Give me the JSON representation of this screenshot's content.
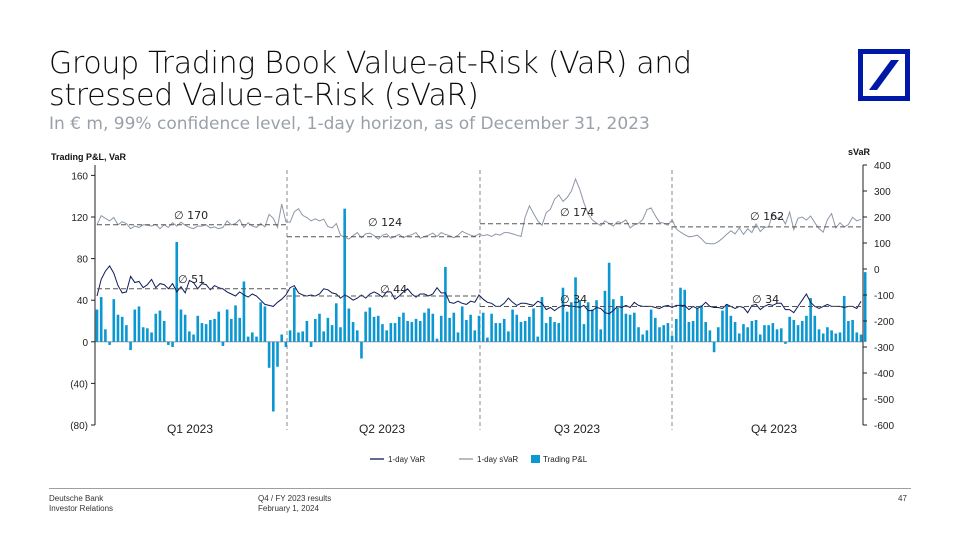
{
  "header": {
    "title": "Group Trading Book Value-at-Risk (VaR) and stressed Value-at-Risk (sVaR)",
    "subtitle": "In € m, 99% confidence level, 1-day horizon, as of December 31, 2023"
  },
  "logo": {
    "icon": "deutsche-bank-slash-logo",
    "color": "#0018a8"
  },
  "footer": {
    "left_line1": "Deutsche Bank",
    "left_line2": "Investor Relations",
    "mid_line1": "Q4 / FY 2023 results",
    "mid_line2": "February 1, 2024",
    "page": "47"
  },
  "colors": {
    "var": "#0f1a5c",
    "svar": "#8d97a6",
    "pnl": "#0a97d2",
    "avg_line": "#555555"
  },
  "chart_data": {
    "type": "line",
    "left_axis": {
      "label": "Trading P&L, VaR",
      "min": -80,
      "max": 170,
      "ticks": [
        160,
        120,
        80,
        40,
        0,
        -40,
        -80
      ],
      "tick_labels": [
        "160",
        "120",
        "80",
        "40",
        "0",
        "(40)",
        "(80)"
      ]
    },
    "right_axis": {
      "label": "sVaR",
      "min": -600,
      "max": 400,
      "ticks": [
        400,
        300,
        200,
        100,
        0,
        -100,
        -200,
        -300,
        -400,
        -500,
        -600
      ],
      "tick_labels": [
        "400",
        "300",
        "200",
        "100",
        "0",
        "-100",
        "-200",
        "-300",
        "-400",
        "-500",
        "-600"
      ]
    },
    "quarters": [
      "Q1 2023",
      "Q2 2023",
      "Q3 2023",
      "Q4 2023"
    ],
    "legend": [
      "1-day VaR",
      "1-day sVaR",
      "Trading P&L"
    ],
    "averages": {
      "var": [
        {
          "quarter": "Q1 2023",
          "label": "∅ 51",
          "value": 51
        },
        {
          "quarter": "Q2 2023",
          "label": "∅ 44",
          "value": 44
        },
        {
          "quarter": "Q3 2023",
          "label": "∅ 34",
          "value": 34
        },
        {
          "quarter": "Q4 2023",
          "label": "∅ 34",
          "value": 34
        }
      ],
      "svar": [
        {
          "quarter": "Q1 2023",
          "label": "∅ 170",
          "value": 170
        },
        {
          "quarter": "Q2 2023",
          "label": "∅ 124",
          "value": 124
        },
        {
          "quarter": "Q3 2023",
          "label": "∅ 174",
          "value": 174
        },
        {
          "quarter": "Q4 2023",
          "label": "∅ 162",
          "value": 162
        }
      ]
    },
    "series": [
      {
        "name": "1-day VaR",
        "axis": "left",
        "values": [
          44,
          60,
          68,
          73,
          66,
          54,
          47,
          48,
          63,
          57,
          58,
          52,
          55,
          60,
          52,
          56,
          55,
          51,
          56,
          48,
          53,
          47,
          59,
          57,
          51,
          56,
          55,
          50,
          54,
          52,
          51,
          48,
          46,
          44,
          48,
          45,
          43,
          46,
          44,
          40,
          36,
          35,
          34,
          38,
          41,
          45,
          52,
          54,
          47,
          45,
          44,
          45,
          44,
          46,
          51,
          50,
          47,
          46,
          42,
          45,
          43,
          40,
          42,
          45,
          42,
          46,
          48,
          46,
          43,
          48,
          48,
          41,
          44,
          48,
          51,
          46,
          43,
          46,
          46,
          44,
          46,
          52,
          47,
          47,
          38,
          37,
          39,
          37,
          36,
          39,
          38,
          45,
          41,
          38,
          37,
          34,
          34,
          37,
          42,
          38,
          35,
          37,
          37,
          36,
          35,
          39,
          37,
          31,
          33,
          30,
          33,
          35,
          35,
          34,
          34,
          33,
          35,
          30,
          30,
          33,
          32,
          28,
          27,
          30,
          34,
          33,
          35,
          33,
          38,
          35,
          34,
          34,
          34,
          33,
          32,
          34,
          35,
          33,
          35,
          35,
          35,
          31,
          34,
          32,
          34,
          38,
          34,
          33,
          33,
          32,
          36,
          34,
          32,
          34,
          33,
          28,
          35,
          36,
          31,
          34,
          36,
          35,
          37,
          37,
          31,
          31,
          28,
          34,
          40,
          46,
          38,
          34,
          32,
          34,
          36,
          34,
          34,
          34,
          33,
          34,
          34,
          32,
          39
        ]
      },
      {
        "name": "1-day sVaR",
        "axis": "right",
        "values": [
          170,
          205,
          195,
          185,
          198,
          170,
          182,
          175,
          155,
          165,
          160,
          170,
          168,
          165,
          172,
          155,
          170,
          160,
          178,
          165,
          180,
          168,
          160,
          155,
          165,
          165,
          170,
          158,
          162,
          155,
          160,
          185,
          170,
          175,
          190,
          160,
          178,
          165,
          160,
          175,
          162,
          210,
          195,
          160,
          250,
          182,
          180,
          220,
          232,
          206,
          198,
          185,
          193,
          185,
          192,
          163,
          158,
          175,
          130,
          122,
          115,
          128,
          140,
          120,
          135,
          138,
          128,
          115,
          130,
          135,
          118,
          125,
          133,
          120,
          128,
          132,
          140,
          118,
          125,
          130,
          138,
          125,
          140,
          133,
          128,
          120,
          130,
          145,
          137,
          130,
          126,
          135,
          128,
          132,
          125,
          135,
          130,
          140,
          140,
          135,
          130,
          125,
          200,
          243,
          213,
          185,
          168,
          216,
          230,
          269,
          285,
          260,
          275,
          300,
          346,
          307,
          255,
          212,
          189,
          177,
          167,
          185,
          175,
          165,
          182,
          178,
          189,
          158,
          170,
          175,
          190,
          228,
          235,
          205,
          180,
          176,
          168,
          190,
          154,
          142,
          132,
          124,
          126,
          130,
          116,
          99,
          97,
          97,
          105,
          118,
          133,
          147,
          135,
          158,
          133,
          155,
          140,
          173,
          144,
          160,
          162,
          213,
          194,
          202,
          173,
          219,
          152,
          195,
          200,
          188,
          204,
          178,
          155,
          142,
          190,
          213,
          158,
          178,
          162,
          171,
          199,
          185,
          191
        ]
      },
      {
        "name": "Trading P&L",
        "axis": "left",
        "values": [
          31,
          43,
          12,
          -3,
          41,
          26,
          24,
          16,
          -8,
          31,
          34,
          14,
          13,
          9,
          27,
          30,
          20,
          -3,
          -5,
          96,
          31,
          26,
          10,
          7,
          25,
          18,
          17,
          21,
          22,
          29,
          -4,
          31,
          22,
          35,
          23,
          58,
          5,
          9,
          5,
          38,
          34,
          -25,
          -67,
          -24,
          7,
          -5,
          11,
          52,
          9,
          10,
          20,
          -5,
          22,
          27,
          10,
          23,
          16,
          37,
          14,
          128,
          32,
          19,
          11,
          -16,
          29,
          33,
          24,
          25,
          17,
          11,
          18,
          18,
          24,
          28,
          20,
          19,
          22,
          20,
          28,
          32,
          27,
          3,
          25,
          72,
          23,
          28,
          9,
          34,
          21,
          26,
          11,
          25,
          28,
          4,
          27,
          18,
          18,
          22,
          10,
          31,
          26,
          19,
          20,
          24,
          32,
          5,
          43,
          18,
          24,
          19,
          18,
          52,
          29,
          38,
          62,
          40,
          17,
          38,
          31,
          40,
          12,
          49,
          76,
          41,
          33,
          44,
          27,
          26,
          28,
          14,
          7,
          11,
          31,
          23,
          14,
          16,
          18,
          6,
          22,
          52,
          50,
          19,
          20,
          32,
          35,
          19,
          11,
          -10,
          14,
          30,
          36,
          25,
          19,
          8,
          17,
          14,
          20,
          21,
          7,
          16,
          16,
          18,
          12,
          13,
          -2,
          24,
          21,
          16,
          20,
          25,
          42,
          25,
          12,
          8,
          14,
          11,
          8,
          9,
          44,
          20,
          21,
          9,
          7,
          67
        ]
      }
    ]
  }
}
